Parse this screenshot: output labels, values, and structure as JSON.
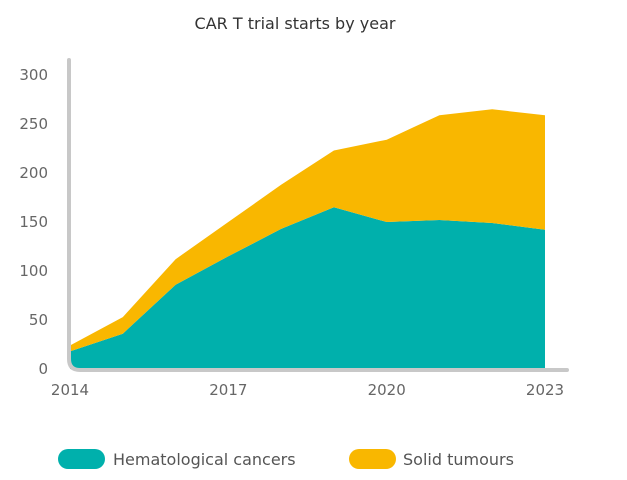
{
  "chart_data": {
    "type": "area",
    "stacked": true,
    "title": "CAR T trial starts by year",
    "xlabel": "",
    "ylabel": "",
    "x": [
      2014,
      2015,
      2016,
      2017,
      2018,
      2019,
      2020,
      2021,
      2022,
      2023
    ],
    "x_ticks": [
      "2014",
      "2017",
      "2020",
      "2023"
    ],
    "y_ticks": [
      0,
      50,
      100,
      150,
      200,
      250,
      300
    ],
    "ylim": [
      0,
      300
    ],
    "legend_position": "bottom",
    "series": [
      {
        "name": "Hematological cancers",
        "color": "#00b0ac",
        "values": [
          18,
          36,
          86,
          115,
          143,
          165,
          150,
          152,
          149,
          142
        ]
      },
      {
        "name": "Solid tumours",
        "color": "#f9b700",
        "values": [
          6,
          17,
          26,
          35,
          45,
          58,
          84,
          107,
          116,
          117
        ]
      }
    ],
    "axis_color": "#c8c8c8"
  }
}
